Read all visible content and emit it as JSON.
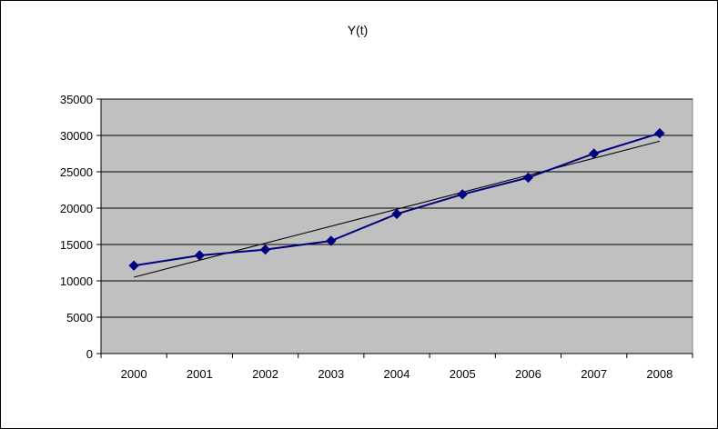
{
  "chart_data": {
    "type": "line",
    "title": "Y(t)",
    "xlabel": "",
    "ylabel": "",
    "x": [
      "2000",
      "2001",
      "2002",
      "2003",
      "2004",
      "2005",
      "2006",
      "2007",
      "2008"
    ],
    "series": [
      {
        "values": [
          12100,
          13500,
          14300,
          15500,
          19200,
          21900,
          24200,
          27500,
          30300
        ],
        "color": "#000080",
        "marker": "diamond"
      }
    ],
    "trendline": {
      "type": "linear",
      "start": 10500,
      "end": 29200,
      "color": "#000000"
    },
    "ylim": [
      0,
      35000
    ],
    "yticks": [
      "0",
      "5000",
      "10000",
      "15000",
      "20000",
      "25000",
      "30000",
      "35000"
    ],
    "grid": true,
    "legend": "none",
    "plot_background": "#c0c0c0"
  }
}
